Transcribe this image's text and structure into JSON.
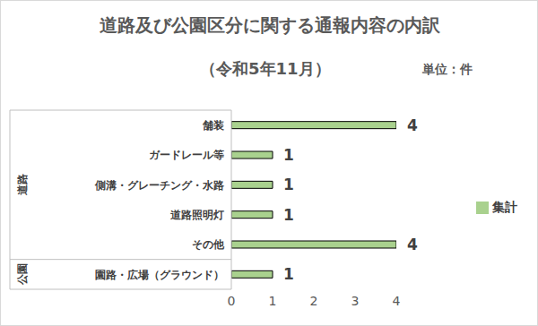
{
  "chart_data": {
    "type": "bar",
    "orientation": "horizontal",
    "title": "道路及び公園区分に関する通報内容の内訳",
    "subtitle": "（令和5年11月）",
    "unit": "単位：件",
    "categories": [
      "舗装",
      "ガードレール等",
      "側溝・グレーチング・水路",
      "道路照明灯",
      "その他",
      "園路・広場（グラウンド）"
    ],
    "groups": [
      "道路",
      "道路",
      "道路",
      "道路",
      "道路",
      "公園"
    ],
    "series": [
      {
        "name": "集計",
        "color": "#a9d18e",
        "values": [
          4,
          1,
          1,
          1,
          4,
          1
        ]
      }
    ],
    "xlim": [
      0,
      4
    ],
    "xticks": [
      0,
      1,
      2,
      3,
      4
    ],
    "data_labels": true,
    "legend": "right",
    "grid": false
  }
}
